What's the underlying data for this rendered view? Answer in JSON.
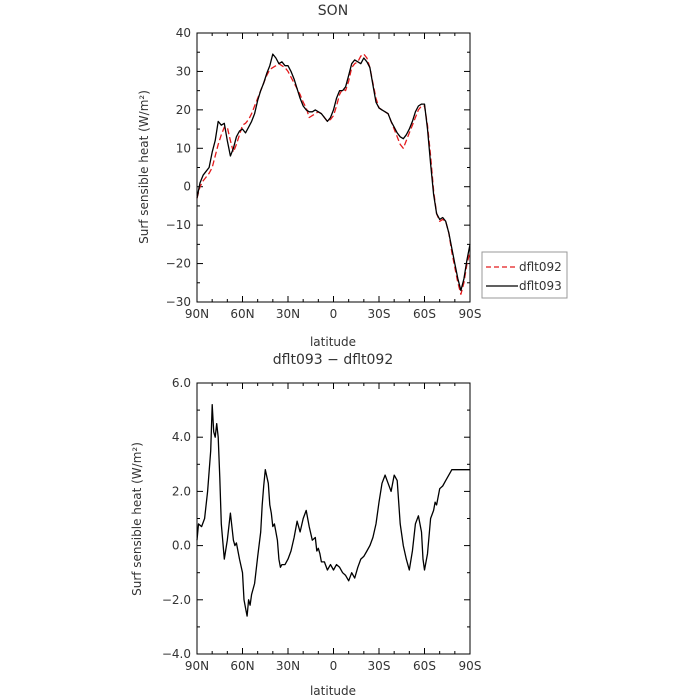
{
  "chart_data": [
    {
      "type": "line",
      "title": "SON",
      "xlabel": "latitude",
      "ylabel": "Surf sensible heat (W/m²)",
      "xlim": [
        90,
        -90
      ],
      "ylim": [
        -30,
        40
      ],
      "x_ticks": [
        90,
        60,
        30,
        0,
        -30,
        -60,
        -90
      ],
      "x_tick_labels": [
        "90N",
        "60N",
        "30N",
        "0",
        "30S",
        "60S",
        "90S"
      ],
      "y_ticks": [
        -30,
        -20,
        -10,
        0,
        10,
        20,
        30,
        40
      ],
      "y_tick_labels": [
        "−30",
        "−20",
        "−10",
        "0",
        "10",
        "20",
        "30",
        "40"
      ],
      "legend": {
        "placement": "right-outside-bottom"
      },
      "series": [
        {
          "name": "dflt092",
          "color": "#e41a1c",
          "style": "dashed",
          "x": [
            90,
            88,
            86,
            84,
            82,
            80,
            78,
            76,
            74,
            72,
            70,
            68,
            66,
            64,
            62,
            60,
            58,
            56,
            54,
            52,
            50,
            48,
            46,
            44,
            42,
            40,
            38,
            36,
            34,
            32,
            30,
            28,
            26,
            24,
            22,
            20,
            18,
            16,
            14,
            12,
            10,
            8,
            6,
            4,
            2,
            0,
            -2,
            -4,
            -6,
            -8,
            -10,
            -12,
            -14,
            -16,
            -18,
            -20,
            -22,
            -24,
            -26,
            -28,
            -30,
            -32,
            -34,
            -36,
            -38,
            -40,
            -42,
            -44,
            -46,
            -48,
            -50,
            -52,
            -54,
            -56,
            -58,
            -60,
            -62,
            -64,
            -66,
            -68,
            -70,
            -72,
            -74,
            -76,
            -78,
            -80,
            -82,
            -84,
            -86,
            -88,
            -90
          ],
          "values": [
            -3,
            0,
            1.5,
            2.5,
            3.5,
            5,
            8,
            11,
            13.5,
            15.5,
            15.5,
            12,
            9,
            11,
            13.5,
            16,
            16.5,
            17.5,
            19,
            21,
            23,
            25,
            27,
            29,
            30.5,
            31,
            31.5,
            32,
            31.5,
            31,
            30,
            28.5,
            27,
            25.5,
            24,
            22,
            20.5,
            18,
            18.5,
            19,
            19.5,
            19,
            18,
            17,
            17.5,
            18.5,
            21,
            24,
            25.5,
            25,
            27.5,
            31,
            32,
            32.5,
            34,
            34.5,
            33.5,
            31,
            27,
            23,
            20.5,
            20,
            19.5,
            19,
            17,
            15,
            13,
            11,
            10,
            12,
            14,
            16,
            18,
            20,
            21,
            21,
            16,
            8,
            -1,
            -7,
            -9,
            -8.5,
            -9,
            -12,
            -17,
            -21,
            -25,
            -28,
            -25,
            -20,
            -17
          ]
        },
        {
          "name": "dflt093",
          "color": "#000000",
          "style": "solid",
          "x": [
            90,
            88,
            86,
            84,
            82,
            80,
            78,
            76,
            74,
            72,
            70,
            68,
            66,
            64,
            62,
            60,
            58,
            56,
            54,
            52,
            50,
            48,
            46,
            44,
            42,
            40,
            38,
            36,
            34,
            32,
            30,
            28,
            26,
            24,
            22,
            20,
            18,
            16,
            14,
            12,
            10,
            8,
            6,
            4,
            2,
            0,
            -2,
            -4,
            -6,
            -8,
            -10,
            -12,
            -14,
            -16,
            -18,
            -20,
            -22,
            -24,
            -26,
            -28,
            -30,
            -32,
            -34,
            -36,
            -38,
            -40,
            -42,
            -44,
            -46,
            -48,
            -50,
            -52,
            -54,
            -56,
            -58,
            -60,
            -62,
            -64,
            -66,
            -68,
            -70,
            -72,
            -74,
            -76,
            -78,
            -80,
            -82,
            -84,
            -86,
            -88,
            -90
          ],
          "values": [
            -3,
            1,
            3,
            4,
            5,
            9,
            12,
            17,
            16,
            16.5,
            12,
            8,
            10,
            13,
            14.5,
            15,
            14,
            15.5,
            17,
            19,
            22.5,
            25,
            27,
            29.5,
            31.5,
            34.5,
            33.5,
            32,
            32.5,
            31.5,
            31.5,
            30,
            28,
            25.5,
            23,
            21,
            20,
            19.5,
            19.5,
            20,
            19.5,
            19,
            18,
            17,
            18,
            20,
            23,
            25,
            25,
            26,
            29,
            32,
            33,
            32.5,
            32,
            33.5,
            32.5,
            31,
            26.5,
            22,
            20.5,
            20,
            19.5,
            19,
            17,
            15.5,
            14,
            13,
            12.5,
            13.5,
            15,
            17,
            19.5,
            21,
            21.5,
            21.5,
            15,
            6,
            -2,
            -7,
            -8.5,
            -8,
            -9,
            -12,
            -16,
            -20,
            -24,
            -27,
            -24,
            -19,
            -15
          ]
        }
      ]
    },
    {
      "type": "line",
      "title": "dflt093 − dflt092",
      "xlabel": "latitude",
      "ylabel": "Surf sensible heat (W/m²)",
      "xlim": [
        90,
        -90
      ],
      "ylim": [
        -4,
        6
      ],
      "x_ticks": [
        90,
        60,
        30,
        0,
        -30,
        -60,
        -90
      ],
      "x_tick_labels": [
        "90N",
        "60N",
        "30N",
        "0",
        "30S",
        "60S",
        "90S"
      ],
      "y_ticks": [
        -4,
        -2,
        0,
        2,
        4,
        6
      ],
      "y_tick_labels": [
        "−4.0",
        "−2.0",
        "0.0",
        "2.0",
        "4.0",
        "6.0"
      ],
      "series": [
        {
          "color": "#000000",
          "style": "solid",
          "x": [
            90,
            89,
            87,
            85,
            83,
            81,
            80,
            79,
            78,
            77,
            76,
            75,
            74,
            72,
            70,
            68,
            66,
            65,
            64,
            62,
            60,
            59,
            58,
            57,
            56,
            55,
            54,
            52,
            50,
            48,
            47,
            46,
            45,
            43,
            42,
            41,
            40,
            39,
            38,
            37,
            36,
            35,
            34,
            32,
            30,
            28,
            26,
            24,
            22,
            20,
            18,
            16,
            14,
            12,
            11,
            10,
            9,
            8,
            6,
            4,
            2,
            0,
            -2,
            -4,
            -6,
            -8,
            -10,
            -12,
            -14,
            -16,
            -18,
            -20,
            -22,
            -24,
            -26,
            -28,
            -30,
            -32,
            -34,
            -36,
            -38,
            -40,
            -42,
            -44,
            -46,
            -48,
            -50,
            -52,
            -54,
            -56,
            -58,
            -59,
            -60,
            -62,
            -64,
            -66,
            -67,
            -68,
            -70,
            -72,
            -74,
            -76,
            -77,
            -78,
            -80,
            -82,
            -84,
            -86,
            -88,
            -90
          ],
          "values": [
            0.2,
            0.8,
            0.7,
            1.0,
            2.0,
            3.5,
            5.2,
            4.2,
            4.0,
            4.5,
            4.0,
            2.5,
            0.8,
            -0.5,
            0.2,
            1.2,
            0.2,
            0.0,
            0.1,
            -0.5,
            -1.0,
            -2.0,
            -2.3,
            -2.6,
            -2.0,
            -2.2,
            -1.8,
            -1.4,
            -0.4,
            0.5,
            1.5,
            2.2,
            2.8,
            2.3,
            1.5,
            1.2,
            0.7,
            0.8,
            0.5,
            0.2,
            -0.5,
            -0.8,
            -0.7,
            -0.7,
            -0.5,
            -0.2,
            0.3,
            0.9,
            0.5,
            1.0,
            1.3,
            0.7,
            0.2,
            0.3,
            -0.2,
            -0.1,
            -0.3,
            -0.6,
            -0.6,
            -0.9,
            -0.7,
            -0.9,
            -0.7,
            -0.8,
            -1.0,
            -1.1,
            -1.3,
            -1.0,
            -1.2,
            -0.8,
            -0.5,
            -0.4,
            -0.2,
            0.0,
            0.3,
            0.8,
            1.6,
            2.3,
            2.6,
            2.3,
            2.0,
            2.6,
            2.4,
            0.8,
            0.0,
            -0.5,
            -0.9,
            -0.2,
            0.8,
            1.1,
            0.5,
            -0.5,
            -0.9,
            -0.3,
            1.0,
            1.3,
            1.6,
            1.5,
            2.1,
            2.2,
            2.4,
            2.6,
            2.7,
            2.8,
            2.8,
            2.8,
            2.8,
            2.8,
            2.8,
            2.8
          ]
        }
      ]
    }
  ]
}
